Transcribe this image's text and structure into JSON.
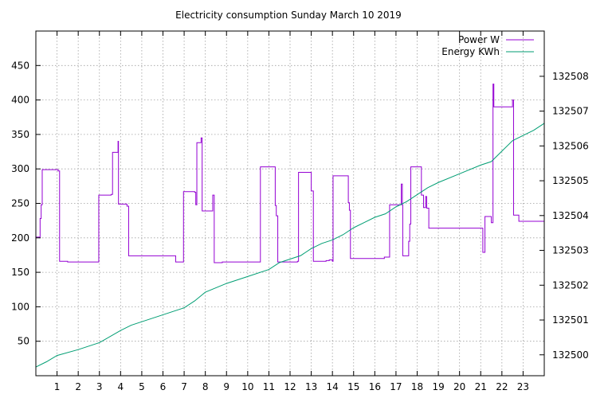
{
  "chart_data": {
    "type": "line",
    "title": "Electricity consumption Sunday March 10 2019",
    "xlabel": "",
    "ylabel": "",
    "y2label": "",
    "xlim": [
      0,
      24
    ],
    "ylim": [
      0,
      500
    ],
    "y2lim": [
      132499.4,
      132509.3
    ],
    "x_ticks": [
      1,
      2,
      3,
      4,
      5,
      6,
      7,
      8,
      9,
      10,
      11,
      12,
      13,
      14,
      15,
      16,
      17,
      18,
      19,
      20,
      21,
      22,
      23
    ],
    "y_ticks": [
      50,
      100,
      150,
      200,
      250,
      300,
      350,
      400,
      450
    ],
    "y2_ticks": [
      132500,
      132501,
      132502,
      132503,
      132504,
      132505,
      132506,
      132507,
      132508
    ],
    "grid": true,
    "legend_position": "top-right",
    "series": [
      {
        "name": "Power W",
        "axis": "left",
        "color": "#9400d3",
        "step": true,
        "points": [
          [
            0.0,
            201
          ],
          [
            0.2,
            228
          ],
          [
            0.25,
            248
          ],
          [
            0.3,
            299
          ],
          [
            1.05,
            297
          ],
          [
            1.12,
            166
          ],
          [
            1.5,
            165
          ],
          [
            2.9,
            165
          ],
          [
            2.97,
            262
          ],
          [
            3.55,
            263
          ],
          [
            3.62,
            324
          ],
          [
            3.88,
            340
          ],
          [
            3.9,
            249
          ],
          [
            4.3,
            246
          ],
          [
            4.38,
            174
          ],
          [
            6.6,
            165
          ],
          [
            6.97,
            267
          ],
          [
            7.5,
            266
          ],
          [
            7.55,
            248
          ],
          [
            7.6,
            338
          ],
          [
            7.8,
            345
          ],
          [
            7.85,
            239
          ],
          [
            8.35,
            262
          ],
          [
            8.42,
            164
          ],
          [
            8.8,
            165
          ],
          [
            10.6,
            303
          ],
          [
            11.3,
            247
          ],
          [
            11.35,
            232
          ],
          [
            11.42,
            165
          ],
          [
            12.35,
            166
          ],
          [
            12.4,
            295
          ],
          [
            13.0,
            268
          ],
          [
            13.1,
            166
          ],
          [
            13.7,
            167
          ],
          [
            13.85,
            168
          ],
          [
            14.0,
            166
          ],
          [
            14.03,
            290
          ],
          [
            14.75,
            251
          ],
          [
            14.8,
            240
          ],
          [
            14.85,
            170
          ],
          [
            16.45,
            172
          ],
          [
            16.7,
            248
          ],
          [
            17.25,
            278
          ],
          [
            17.3,
            248
          ],
          [
            17.32,
            174
          ],
          [
            17.6,
            195
          ],
          [
            17.65,
            220
          ],
          [
            17.7,
            303
          ],
          [
            18.2,
            262
          ],
          [
            18.3,
            244
          ],
          [
            18.4,
            260
          ],
          [
            18.45,
            243
          ],
          [
            18.55,
            214
          ],
          [
            21.1,
            179
          ],
          [
            21.2,
            231
          ],
          [
            21.5,
            222
          ],
          [
            21.58,
            423
          ],
          [
            21.62,
            390
          ],
          [
            22.5,
            400
          ],
          [
            22.55,
            233
          ],
          [
            22.8,
            224
          ],
          [
            24.0,
            224
          ]
        ]
      },
      {
        "name": "Energy KWh",
        "axis": "right",
        "color": "#009e73",
        "step": false,
        "points": [
          [
            0.0,
            132499.65
          ],
          [
            0.5,
            132499.8
          ],
          [
            1.0,
            132499.98
          ],
          [
            2.0,
            132500.15
          ],
          [
            3.0,
            132500.35
          ],
          [
            4.0,
            132500.7
          ],
          [
            4.5,
            132500.85
          ],
          [
            5.0,
            132500.95
          ],
          [
            6.0,
            132501.15
          ],
          [
            7.0,
            132501.35
          ],
          [
            7.5,
            132501.55
          ],
          [
            8.0,
            132501.8
          ],
          [
            9.0,
            132502.05
          ],
          [
            10.0,
            132502.25
          ],
          [
            11.0,
            132502.45
          ],
          [
            11.5,
            132502.65
          ],
          [
            12.0,
            132502.75
          ],
          [
            12.5,
            132502.85
          ],
          [
            13.0,
            132503.05
          ],
          [
            13.5,
            132503.2
          ],
          [
            14.0,
            132503.3
          ],
          [
            14.5,
            132503.45
          ],
          [
            15.0,
            132503.65
          ],
          [
            15.5,
            132503.8
          ],
          [
            16.0,
            132503.95
          ],
          [
            16.5,
            132504.05
          ],
          [
            17.0,
            132504.25
          ],
          [
            17.5,
            132504.4
          ],
          [
            18.0,
            132504.6
          ],
          [
            18.5,
            132504.8
          ],
          [
            19.0,
            132504.95
          ],
          [
            20.0,
            132505.2
          ],
          [
            21.0,
            132505.45
          ],
          [
            21.5,
            132505.55
          ],
          [
            22.0,
            132505.85
          ],
          [
            22.5,
            132506.15
          ],
          [
            23.0,
            132506.3
          ],
          [
            23.5,
            132506.45
          ],
          [
            24.0,
            132506.65
          ]
        ]
      }
    ]
  }
}
